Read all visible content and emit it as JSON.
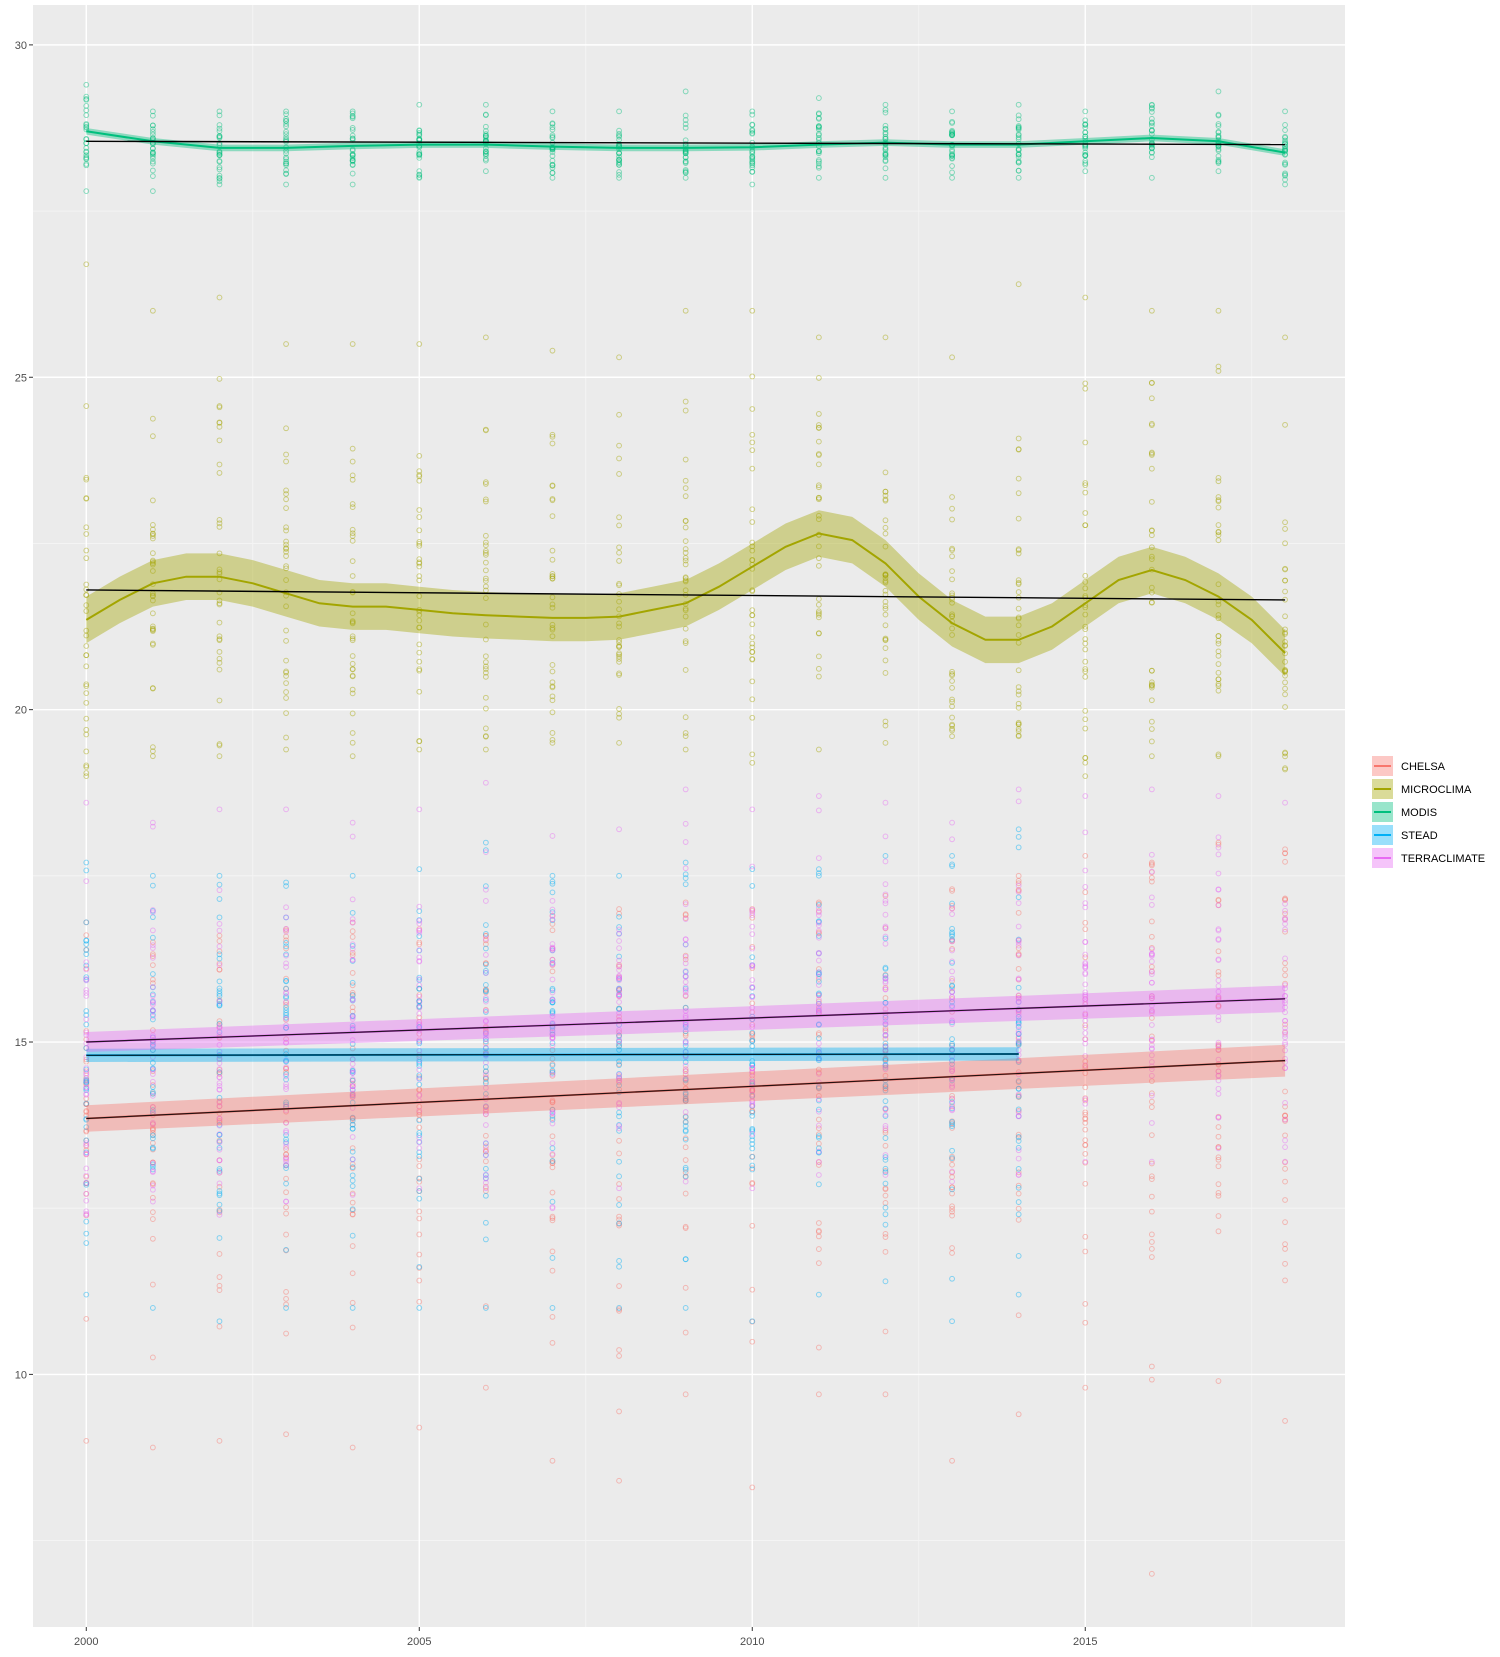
{
  "chart_data": {
    "type": "scatter",
    "title": "",
    "xlabel": "",
    "ylabel": "",
    "xlim": [
      1999.2,
      2018.9
    ],
    "ylim": [
      6.2,
      30.6
    ],
    "x_ticks": [
      2000,
      2005,
      2010,
      2015
    ],
    "y_ticks": [
      10,
      15,
      20,
      25,
      30
    ],
    "grid": true,
    "legend_position": "right",
    "background": "#EBEBEB",
    "series": [
      {
        "name": "CHELSA",
        "color": "#F8766D",
        "trend": "linear",
        "x": [
          2000,
          2018
        ],
        "y": [
          13.85,
          14.72
        ],
        "band_halfwidth": [
          0.2,
          0.24
        ],
        "points_min": [
          9.0,
          8.9,
          9.0,
          9.1,
          8.9,
          9.2,
          9.8,
          8.7,
          8.4,
          9.7,
          8.3,
          9.7,
          9.7,
          8.7,
          9.4,
          9.8,
          7.0,
          9.9,
          9.3
        ],
        "points_max": [
          16.8,
          16.5,
          16.6,
          16.7,
          16.8,
          16.7,
          16.6,
          16.9,
          17.0,
          17.1,
          17.0,
          17.1,
          17.2,
          17.3,
          17.5,
          17.8,
          17.7,
          18.0,
          17.9
        ]
      },
      {
        "name": "MICROCLIMA",
        "color": "#A3A500",
        "trend": "loess",
        "x": [
          2000,
          2000.5,
          2001,
          2001.5,
          2002,
          2002.5,
          2003,
          2003.5,
          2004,
          2004.5,
          2005,
          2005.5,
          2006,
          2006.5,
          2007,
          2007.5,
          2008,
          2008.5,
          2009,
          2009.5,
          2010,
          2010.5,
          2011,
          2011.5,
          2012,
          2012.5,
          2013,
          2013.5,
          2014,
          2014.5,
          2015,
          2015.5,
          2016,
          2016.5,
          2017,
          2017.5,
          2018
        ],
        "y": [
          21.35,
          21.65,
          21.9,
          22.0,
          22.0,
          21.9,
          21.75,
          21.6,
          21.55,
          21.55,
          21.5,
          21.45,
          21.42,
          21.4,
          21.38,
          21.38,
          21.4,
          21.5,
          21.6,
          21.85,
          22.15,
          22.45,
          22.65,
          22.55,
          22.2,
          21.7,
          21.3,
          21.05,
          21.05,
          21.25,
          21.6,
          21.95,
          22.1,
          21.95,
          21.7,
          21.35,
          20.85
        ],
        "band_halfwidth": 0.35,
        "linear_fit": {
          "x": [
            2000,
            2018
          ],
          "y": [
            21.8,
            21.65
          ]
        },
        "points_min": [
          19.0,
          19.3,
          19.3,
          19.4,
          19.3,
          19.4,
          19.4,
          19.5,
          19.5,
          19.4,
          19.2,
          19.4,
          19.5,
          19.6,
          19.6,
          19.0,
          19.3,
          19.3,
          19.1
        ],
        "points_max": [
          26.7,
          26.0,
          26.2,
          25.5,
          25.5,
          25.5,
          25.6,
          25.4,
          25.3,
          26.0,
          26.0,
          25.6,
          25.6,
          25.3,
          26.4,
          26.2,
          26.0,
          26.0,
          25.6
        ]
      },
      {
        "name": "MODIS",
        "color": "#00BF7D",
        "trend": "loess",
        "x": [
          2000,
          2001,
          2002,
          2003,
          2004,
          2005,
          2006,
          2007,
          2008,
          2009,
          2010,
          2011,
          2012,
          2013,
          2014,
          2015,
          2016,
          2017,
          2018
        ],
        "y": [
          28.7,
          28.55,
          28.45,
          28.45,
          28.48,
          28.5,
          28.5,
          28.47,
          28.45,
          28.45,
          28.46,
          28.5,
          28.53,
          28.5,
          28.5,
          28.55,
          28.6,
          28.55,
          28.38
        ],
        "band_halfwidth": 0.05,
        "linear_fit": {
          "x": [
            2000,
            2018
          ],
          "y": [
            28.55,
            28.5
          ]
        },
        "points_min": [
          27.8,
          27.8,
          27.9,
          27.9,
          27.9,
          28.0,
          28.1,
          28.0,
          28.0,
          28.0,
          27.9,
          28.0,
          28.0,
          28.0,
          28.0,
          28.1,
          28.0,
          28.1,
          27.9
        ],
        "points_max": [
          29.4,
          29.0,
          29.0,
          29.0,
          29.0,
          29.1,
          29.1,
          29.0,
          29.0,
          29.3,
          29.0,
          29.2,
          29.1,
          29.0,
          29.1,
          29.0,
          29.1,
          29.3,
          29.0
        ]
      },
      {
        "name": "STEAD",
        "color": "#00B0F6",
        "trend": "linear",
        "x": [
          2000,
          2014
        ],
        "y": [
          14.8,
          14.82
        ],
        "band_halfwidth": 0.1,
        "points_min": [
          11.2,
          11.0,
          10.8,
          11.0,
          11.0,
          11.0,
          11.0,
          11.0,
          11.0,
          11.0,
          10.8,
          11.2,
          11.4,
          10.8,
          11.2
        ],
        "points_max": [
          17.7,
          17.5,
          17.5,
          17.4,
          17.5,
          17.6,
          18.0,
          17.5,
          17.5,
          17.7,
          17.6,
          17.6,
          17.8,
          17.8,
          18.2
        ]
      },
      {
        "name": "TERRACLIMATE",
        "color": "#E76BF3",
        "trend": "linear",
        "x": [
          2000,
          2018
        ],
        "y": [
          15.0,
          15.65
        ],
        "band_halfwidth": [
          0.15,
          0.2
        ],
        "points_min": [
          12.4,
          12.6,
          12.4,
          12.6,
          12.7,
          12.8,
          12.8,
          12.5,
          12.8,
          12.9,
          12.8,
          13.0,
          13.0,
          12.9,
          13.0,
          13.2,
          13.2,
          13.4,
          13.2
        ],
        "points_max": [
          18.6,
          18.3,
          18.5,
          18.5,
          18.3,
          18.5,
          18.9,
          18.1,
          18.2,
          18.8,
          18.5,
          18.7,
          18.6,
          18.3,
          18.8,
          18.7,
          18.8,
          18.7,
          18.6
        ]
      }
    ]
  }
}
